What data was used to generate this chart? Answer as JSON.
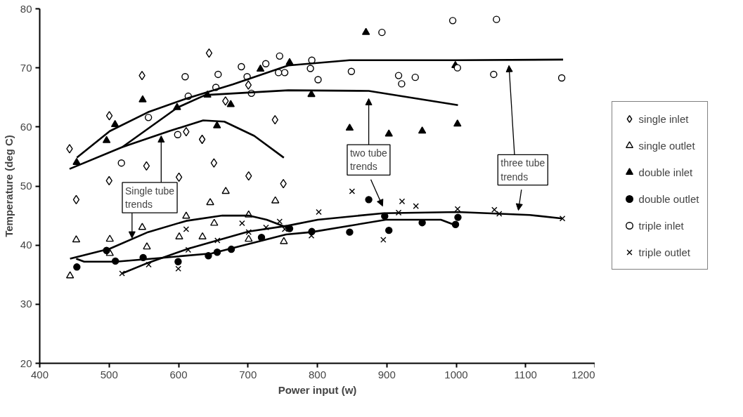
{
  "chart_data": {
    "type": "scatter",
    "xlabel": "Power input (w)",
    "ylabel": "Temperature (deg C)",
    "xlim": [
      400,
      1200
    ],
    "ylim": [
      20,
      80
    ],
    "xticks": [
      400,
      500,
      600,
      700,
      800,
      900,
      1000,
      1100,
      1200
    ],
    "yticks": [
      20,
      30,
      40,
      50,
      60,
      70,
      80
    ],
    "legend": "right",
    "line_style": "solid",
    "series": [
      {
        "name": "single inlet",
        "color": "#000000",
        "marker": "diamond",
        "x": [
          443,
          452.6,
          500.3,
          500,
          547.4,
          553.8,
          600.6,
          611,
          634,
          644,
          651,
          667.6,
          700.6,
          701,
          739,
          751
        ],
        "values": [
          56.3,
          47.7,
          61.9,
          50.9,
          68.7,
          53.4,
          51.5,
          59.2,
          57.9,
          72.5,
          53.9,
          64.4,
          67.1,
          51.7,
          61.2,
          50.4
        ]
      },
      {
        "name": "single outlet",
        "color": "#000000",
        "marker": "triangle",
        "x": [
          443.7,
          452.6,
          501,
          501,
          547.7,
          554.4,
          601,
          611,
          634.5,
          645.6,
          651.4,
          668,
          701,
          701,
          739.4,
          751.7
        ],
        "values": [
          34.8,
          40.9,
          41.0,
          38.6,
          43.0,
          39.7,
          41.4,
          44.9,
          41.4,
          47.2,
          43.7,
          49.1,
          45.1,
          41.0,
          47.5,
          40.6
        ]
      },
      {
        "name": "double inlet",
        "color": "#000000",
        "marker": "triangle",
        "x": [
          453.2,
          496.3,
          508.5,
          548.3,
          597.9,
          641.6,
          655.4,
          675.2,
          718,
          760,
          791.4,
          846.5,
          870,
          903,
          951,
          998.8,
          1001.8
        ],
        "values": [
          54.0,
          57.7,
          60.4,
          64.6,
          63.3,
          65.4,
          60.2,
          63.8,
          69.8,
          70.9,
          65.5,
          59.8,
          76,
          58.8,
          59.3,
          70.4,
          60.5
        ]
      },
      {
        "name": "double outlet",
        "color": "#000000",
        "marker": "circle",
        "x": [
          453.5,
          496.3,
          509,
          549,
          599.4,
          643,
          655.7,
          676,
          719.5,
          760,
          792,
          846.5,
          874,
          897,
          903,
          951,
          999,
          1002.5
        ],
        "values": [
          36.3,
          39.1,
          37.3,
          37.9,
          37.2,
          38.2,
          38.8,
          39.3,
          41.3,
          42.8,
          42.3,
          42.2,
          47.7,
          44.9,
          42.5,
          43.8,
          43.5,
          44.7
        ]
      },
      {
        "name": "triple inlet",
        "color": "#000000",
        "marker": "circle",
        "x": [
          517.7,
          556.6,
          598.8,
          609.5,
          614,
          653.8,
          657,
          690.5,
          698.8,
          705,
          725.7,
          744,
          745.6,
          753,
          790,
          792,
          801,
          849,
          893,
          917,
          921.4,
          941,
          995,
          1001.8,
          1054,
          1058,
          1152
        ],
        "values": [
          53.9,
          61.6,
          58.7,
          68.5,
          65.2,
          66.7,
          68.9,
          70.2,
          68.5,
          65.7,
          70.7,
          69.2,
          72.0,
          69.2,
          69.9,
          71.3,
          68.0,
          69.4,
          76,
          68.7,
          67.3,
          68.4,
          78,
          70.0,
          68.9,
          78.2,
          68.3
        ]
      },
      {
        "name": "triple outlet",
        "color": "#000000",
        "marker": "cross",
        "x": [
          518.6,
          557,
          599.7,
          611,
          614,
          656,
          691.5,
          701,
          726,
          745.6,
          753,
          791.4,
          802,
          850,
          895,
          917,
          922,
          942,
          1002,
          1055,
          1062,
          1153
        ],
        "values": [
          35.2,
          36.7,
          36.0,
          42.7,
          39.2,
          40.8,
          43.7,
          42.2,
          43.0,
          44.0,
          42.7,
          41.6,
          45.6,
          49.1,
          40.9,
          45.5,
          47.4,
          46.6,
          46.1,
          46.0,
          45.3,
          44.5
        ]
      },
      {
        "type": "line",
        "color": "#000000",
        "x": [
          443,
          519,
          586.5,
          635.5,
          666,
          709,
          751.7
        ],
        "values": [
          52.9,
          56.6,
          59.3,
          61.1,
          60.9,
          58.5,
          54.8
        ]
      },
      {
        "type": "line",
        "color": "#000000",
        "x": [
          519,
          598.8,
          638.5,
          758,
          874,
          1002.5
        ],
        "values": [
          56.6,
          63.3,
          65.4,
          66.2,
          66.1,
          63.7
        ]
      },
      {
        "type": "line",
        "color": "#000000",
        "x": [
          453.5,
          501,
          556,
          611,
          678,
          758,
          846.5,
          999,
          1154
        ],
        "values": [
          54.8,
          59.3,
          62.5,
          64.8,
          67.2,
          70.4,
          71.3,
          71.3,
          71.4
        ]
      },
      {
        "type": "line",
        "color": "#000000",
        "x": [
          443.7,
          501,
          556,
          611,
          663,
          701,
          727,
          758
        ],
        "values": [
          37.7,
          39.4,
          42.2,
          44.1,
          45.0,
          45.0,
          44.3,
          42.9
        ]
      },
      {
        "type": "line",
        "color": "#000000",
        "x": [
          452.6,
          464,
          510,
          571,
          647.7,
          754.8,
          791.4,
          898.5,
          978,
          996
        ],
        "values": [
          37.7,
          37.2,
          37.2,
          37.8,
          38.6,
          41.8,
          42.2,
          44.3,
          44.3,
          43.5
        ]
      },
      {
        "type": "line",
        "color": "#000000",
        "x": [
          518.6,
          556,
          614,
          701,
          758,
          800.6,
          895,
          1002.5,
          1106,
          1153
        ],
        "values": [
          35.2,
          37.0,
          39.4,
          42.3,
          43.3,
          44.3,
          45.4,
          45.6,
          45.1,
          44.5
        ]
      }
    ],
    "annotations": [
      {
        "text": "Single tube trends",
        "x": 575,
        "y": 58.5
      },
      "two tube trends",
      "three tube trends"
    ]
  }
}
